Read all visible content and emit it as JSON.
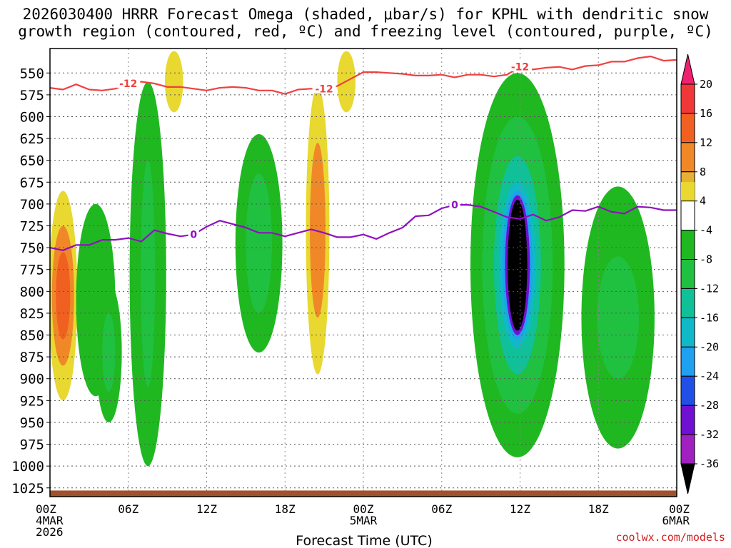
{
  "chart_data": {
    "type": "time-height",
    "title_line1": "2026030400 HRRR Forecast Omega (shaded, μbar/s) for KPHL with dendritic snow",
    "title_line2": "growth region (contoured, red, ºC) and freezing level (contoured, purple, ºC)",
    "xlabel": "Forecast Time (UTC)",
    "x_range": [
      0,
      48
    ],
    "x_ticks": [
      {
        "h": 0,
        "lines": [
          "00Z",
          "4MAR",
          "2026"
        ]
      },
      {
        "h": 6,
        "lines": [
          "06Z"
        ]
      },
      {
        "h": 12,
        "lines": [
          "12Z"
        ]
      },
      {
        "h": 18,
        "lines": [
          "18Z"
        ]
      },
      {
        "h": 24,
        "lines": [
          "00Z",
          "5MAR"
        ]
      },
      {
        "h": 30,
        "lines": [
          "06Z"
        ]
      },
      {
        "h": 36,
        "lines": [
          "12Z"
        ]
      },
      {
        "h": 42,
        "lines": [
          "18Z"
        ]
      },
      {
        "h": 48,
        "lines": [
          "00Z",
          "6MAR"
        ]
      }
    ],
    "y_range": [
      1035,
      522
    ],
    "y_ticks": [
      550,
      575,
      600,
      625,
      650,
      675,
      700,
      725,
      750,
      775,
      800,
      825,
      850,
      875,
      900,
      925,
      950,
      975,
      1000,
      1025
    ],
    "colorbar": {
      "labels": [
        "20",
        "16",
        "12",
        "8",
        "4",
        "-4",
        "-8",
        "-12",
        "-16",
        "-20",
        "-24",
        "-28",
        "-32",
        "-36"
      ],
      "colors": [
        "#f02070",
        "#f03838",
        "#f06020",
        "#f08828",
        "#e8b030",
        "#e8d830",
        "#ffffff",
        "#20b820",
        "#20c040",
        "#10c098",
        "#10b8c8",
        "#20a0f0",
        "#2050e8",
        "#7010d0",
        "#a020c0",
        "#a0a0a0",
        "#000000"
      ]
    },
    "dgz_contour": {
      "label": "-12",
      "points": [
        [
          0,
          567
        ],
        [
          1,
          569
        ],
        [
          2,
          563
        ],
        [
          3,
          569
        ],
        [
          4,
          570
        ],
        [
          5,
          568
        ],
        [
          6,
          562
        ],
        [
          7,
          560
        ],
        [
          8,
          562
        ],
        [
          9,
          566
        ],
        [
          10,
          566
        ],
        [
          11,
          568
        ],
        [
          12,
          570
        ],
        [
          13,
          567
        ],
        [
          14,
          566
        ],
        [
          15,
          567
        ],
        [
          16,
          570
        ],
        [
          17,
          570
        ],
        [
          18,
          574
        ],
        [
          19,
          569
        ],
        [
          20,
          568
        ],
        [
          21,
          568
        ],
        [
          22,
          565
        ],
        [
          23,
          557
        ],
        [
          24,
          549
        ],
        [
          25,
          549
        ],
        [
          26,
          550
        ],
        [
          27,
          551
        ],
        [
          28,
          553
        ],
        [
          29,
          553
        ],
        [
          30,
          552
        ],
        [
          31,
          555
        ],
        [
          32,
          552
        ],
        [
          33,
          552
        ],
        [
          34,
          554
        ],
        [
          35,
          552
        ],
        [
          36,
          543
        ],
        [
          37,
          546
        ],
        [
          38,
          544
        ],
        [
          39,
          543
        ],
        [
          40,
          546
        ],
        [
          41,
          542
        ],
        [
          42,
          541
        ],
        [
          43,
          537
        ],
        [
          44,
          537
        ],
        [
          45,
          533
        ],
        [
          46,
          531
        ],
        [
          47,
          536
        ],
        [
          48,
          535
        ]
      ]
    },
    "freezing_contour": {
      "label": "0",
      "points": [
        [
          0,
          750
        ],
        [
          1,
          753
        ],
        [
          2,
          747
        ],
        [
          3,
          747
        ],
        [
          4,
          741
        ],
        [
          5,
          741
        ],
        [
          6,
          739
        ],
        [
          7,
          743
        ],
        [
          8,
          730
        ],
        [
          9,
          734
        ],
        [
          10,
          737
        ],
        [
          11,
          735
        ],
        [
          12,
          726
        ],
        [
          13,
          719
        ],
        [
          14,
          723
        ],
        [
          15,
          727
        ],
        [
          16,
          733
        ],
        [
          17,
          733
        ],
        [
          18,
          737
        ],
        [
          19,
          733
        ],
        [
          20,
          729
        ],
        [
          21,
          733
        ],
        [
          22,
          738
        ],
        [
          23,
          738
        ],
        [
          24,
          735
        ],
        [
          25,
          740
        ],
        [
          26,
          733
        ],
        [
          27,
          727
        ],
        [
          28,
          714
        ],
        [
          29,
          713
        ],
        [
          30,
          705
        ],
        [
          31,
          701
        ],
        [
          32,
          701
        ],
        [
          33,
          703
        ],
        [
          34,
          709
        ],
        [
          35,
          715
        ],
        [
          36,
          717
        ],
        [
          37,
          712
        ],
        [
          38,
          719
        ],
        [
          39,
          715
        ],
        [
          40,
          707
        ],
        [
          41,
          708
        ],
        [
          42,
          703
        ],
        [
          43,
          709
        ],
        [
          44,
          711
        ],
        [
          45,
          703
        ],
        [
          46,
          704
        ],
        [
          47,
          707
        ],
        [
          48,
          707
        ]
      ]
    },
    "omega_features": [
      {
        "t": 1.0,
        "p": 805,
        "bands": [
          [
            1.1,
            120,
            4
          ],
          [
            0.85,
            80,
            8
          ],
          [
            0.55,
            50,
            12
          ]
        ]
      },
      {
        "t": 3.5,
        "p": 790,
        "bands": [
          [
            1.4,
            85,
            4
          ],
          [
            1.05,
            65,
            8
          ],
          [
            0.7,
            45,
            12
          ]
        ]
      },
      {
        "t": 20.5,
        "p": 730,
        "bands": [
          [
            0.9,
            165,
            4
          ],
          [
            0.6,
            100,
            8
          ]
        ]
      },
      {
        "t": 22.7,
        "p": 560,
        "bands": [
          [
            0.7,
            35,
            4
          ]
        ]
      },
      {
        "t": 9.5,
        "p": 560,
        "bands": [
          [
            0.7,
            35,
            4
          ]
        ]
      },
      {
        "t": 3.5,
        "p": 810,
        "bands": [
          [
            1.5,
            110,
            -4
          ]
        ]
      },
      {
        "t": 4.5,
        "p": 870,
        "bands": [
          [
            1.0,
            80,
            -4
          ],
          [
            0.5,
            45,
            -8
          ]
        ]
      },
      {
        "t": 7.5,
        "p": 780,
        "bands": [
          [
            1.4,
            220,
            -4
          ],
          [
            0.55,
            130,
            -8
          ]
        ]
      },
      {
        "t": 16.0,
        "p": 745,
        "bands": [
          [
            1.8,
            125,
            -4
          ],
          [
            1.0,
            80,
            -8
          ]
        ]
      },
      {
        "t": 35.8,
        "p": 770,
        "bands": [
          [
            3.6,
            220,
            -4
          ],
          [
            2.7,
            170,
            -8
          ],
          [
            1.8,
            125,
            -12
          ],
          [
            1.4,
            95,
            -16
          ],
          [
            1.15,
            85,
            -20
          ],
          [
            0.95,
            80,
            -28
          ],
          [
            0.75,
            75,
            -36
          ]
        ]
      },
      {
        "t": 43.5,
        "p": 830,
        "bands": [
          [
            2.8,
            150,
            -4
          ],
          [
            1.6,
            70,
            -8
          ]
        ]
      }
    ]
  },
  "credit": "coolwx.com/models"
}
